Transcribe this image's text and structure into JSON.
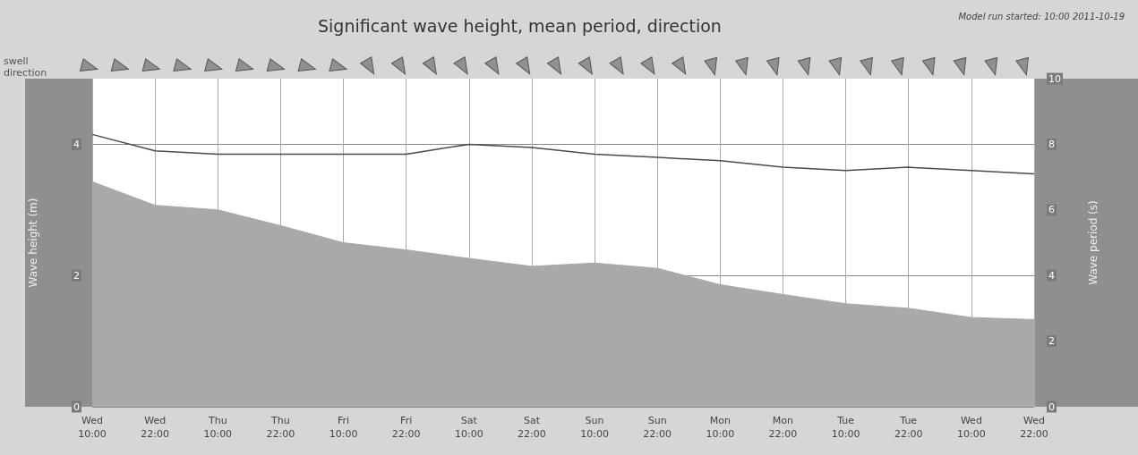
{
  "chart_data": {
    "type": "area",
    "title": "Significant wave height, mean period, direction",
    "subtitle": "Model run started: 10:00 2011-10-19",
    "ylabel": "Wave height (m)",
    "y2label": "Wave period (s)",
    "annotations": [
      "swell direction"
    ],
    "categories": [
      "Wed\n10:00",
      "Wed\n22:00",
      "Thu\n10:00",
      "Thu\n22:00",
      "Fri\n10:00",
      "Fri\n22:00",
      "Sat\n10:00",
      "Sat\n22:00",
      "Sun\n10:00",
      "Sun\n22:00",
      "Mon\n10:00",
      "Mon\n22:00",
      "Tue\n10:00",
      "Tue\n22:00",
      "Wed\n10:00",
      "Wed\n22:00"
    ],
    "series": [
      {
        "color": "#a9a9a9",
        "values": [
          3.43,
          3.07,
          3.0,
          2.76,
          2.5,
          2.39,
          2.26,
          2.14,
          2.19,
          2.11,
          1.86,
          1.71,
          1.57,
          1.5,
          1.36,
          1.33
        ]
      },
      {
        "type": "line",
        "axis": "y2",
        "color": "#4a4a4a",
        "values": [
          8.3,
          7.8,
          7.7,
          7.7,
          7.7,
          7.7,
          8.0,
          7.9,
          7.7,
          7.6,
          7.5,
          7.3,
          7.2,
          7.3,
          7.2,
          7.1
        ]
      }
    ],
    "ylim": [
      0,
      5
    ],
    "yticks": [
      0,
      2,
      4
    ],
    "y2lim": [
      0,
      10
    ],
    "y2ticks": [
      0,
      2,
      4,
      6,
      8,
      10
    ],
    "grid": true,
    "marker": "none",
    "line_style": "solid"
  }
}
